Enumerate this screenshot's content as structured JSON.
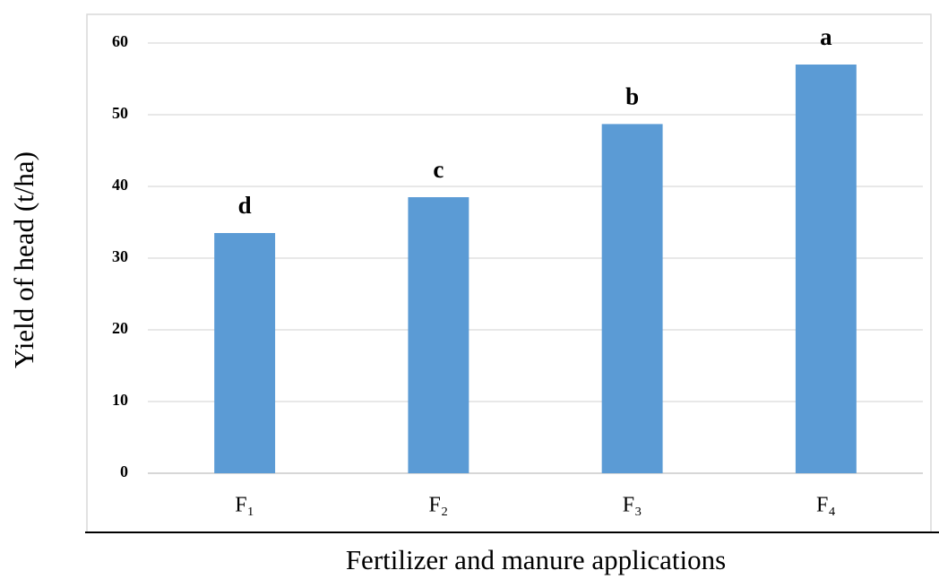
{
  "chart_data": {
    "type": "bar",
    "xlabel": "Fertilizer and manure applications",
    "ylabel": "Yield of head (t/ha)",
    "categories": [
      "F₁",
      "F₂",
      "F₃",
      "F₄"
    ],
    "values": [
      33.5,
      38.5,
      48.7,
      57
    ],
    "annotations": [
      "d",
      "c",
      "b",
      "a"
    ],
    "color": "#5b9bd5",
    "ylim": [
      0,
      60
    ],
    "yticks": [
      0,
      10,
      20,
      30,
      40,
      50,
      60
    ],
    "grid": true
  }
}
